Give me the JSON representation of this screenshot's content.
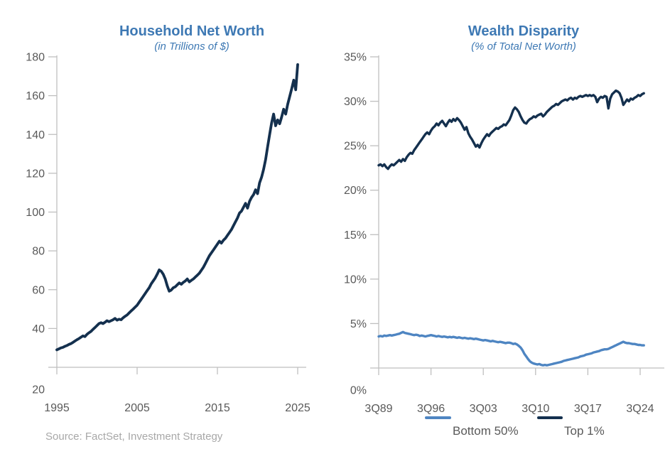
{
  "source_note": "Source: FactSet, Investment Strategy",
  "colors": {
    "title_blue": "#3E79B4",
    "navy": "#14304E",
    "light_blue": "#4E85C2",
    "axis_gray": "#BFBFBF",
    "tick_label_gray": "#595959",
    "source_gray": "#A8A8A8"
  },
  "chart_data": [
    {
      "id": "household-net-worth",
      "type": "line",
      "title": "Household Net Worth",
      "subtitle": "(in Trillions of $)",
      "xlabel": "",
      "ylabel": "",
      "grid": false,
      "legend_position": "none",
      "ylim": [
        20,
        180
      ],
      "y_ticks": [
        {
          "value": 180,
          "label": "180"
        },
        {
          "value": 160,
          "label": "160"
        },
        {
          "value": 140,
          "label": "140"
        },
        {
          "value": 120,
          "label": "120"
        },
        {
          "value": 100,
          "label": "100"
        },
        {
          "value": 80,
          "label": "80"
        },
        {
          "value": 60,
          "label": "60"
        },
        {
          "value": 40,
          "label": "40"
        },
        {
          "value": 20,
          "label": "20"
        }
      ],
      "x_ticks": [
        {
          "value": 1995,
          "label": "1995"
        },
        {
          "value": 2005,
          "label": "2005"
        },
        {
          "value": 2015,
          "label": "2015"
        },
        {
          "value": 2025,
          "label": "2025"
        }
      ],
      "series": [
        {
          "name": "Household Net Worth",
          "color_key": "navy",
          "stroke_width": 3.8,
          "x_start": 1995.0,
          "x_step": 0.25,
          "values": [
            29.0,
            29.5,
            30.0,
            30.3,
            30.8,
            31.2,
            31.8,
            32.2,
            32.8,
            33.5,
            34.2,
            34.8,
            35.5,
            36.2,
            35.8,
            37.0,
            37.8,
            38.5,
            39.5,
            40.5,
            41.5,
            42.5,
            43.0,
            42.5,
            43.2,
            44.0,
            43.5,
            44.0,
            44.5,
            45.2,
            44.3,
            44.8,
            44.5,
            45.5,
            46.3,
            47.0,
            48.0,
            49.0,
            50.0,
            51.0,
            52.0,
            53.5,
            55.0,
            56.5,
            58.0,
            59.5,
            61.0,
            63.0,
            64.5,
            66.0,
            68.0,
            70.2,
            69.5,
            68.0,
            65.5,
            62.0,
            59.2,
            59.8,
            61.0,
            61.5,
            62.5,
            63.5,
            62.8,
            63.8,
            64.5,
            65.5,
            64.0,
            64.8,
            65.5,
            66.5,
            67.5,
            68.5,
            70.0,
            71.5,
            73.5,
            75.5,
            77.5,
            79.0,
            80.5,
            82.0,
            83.5,
            85.0,
            84.0,
            85.5,
            86.5,
            88.0,
            89.5,
            91.0,
            93.0,
            95.0,
            97.0,
            99.5,
            100.5,
            102.5,
            104.5,
            102.0,
            105.5,
            107.5,
            109.0,
            111.5,
            109.5,
            115.0,
            118.0,
            122.0,
            127.0,
            133.5,
            140.0,
            146.0,
            150.5,
            144.5,
            147.5,
            145.5,
            149.0,
            153.0,
            150.5,
            155.5,
            159.5,
            163.5,
            168.0,
            163.0,
            176.0
          ]
        }
      ]
    },
    {
      "id": "wealth-disparity",
      "type": "line",
      "title": "Wealth Disparity",
      "subtitle": "(% of Total Net Worth)",
      "xlabel": "",
      "ylabel": "",
      "grid": false,
      "legend_position": "bottom",
      "ylim": [
        0,
        35
      ],
      "y_ticks": [
        {
          "value": 35,
          "label": "35%"
        },
        {
          "value": 30,
          "label": "30%"
        },
        {
          "value": 25,
          "label": "25%"
        },
        {
          "value": 20,
          "label": "20%"
        },
        {
          "value": 15,
          "label": "15%"
        },
        {
          "value": 10,
          "label": "10%"
        },
        {
          "value": 5,
          "label": "5%"
        },
        {
          "value": 0,
          "label": "0%"
        }
      ],
      "x_ticks": [
        {
          "value": 1989.5,
          "label": "3Q89"
        },
        {
          "value": 1996.5,
          "label": "3Q96"
        },
        {
          "value": 2003.5,
          "label": "3Q03"
        },
        {
          "value": 2010.5,
          "label": "3Q10"
        },
        {
          "value": 2017.5,
          "label": "3Q17"
        },
        {
          "value": 2024.5,
          "label": "3Q24"
        }
      ],
      "legend": [
        {
          "label": "Bottom 50%",
          "color_key": "light_blue"
        },
        {
          "label": "Top 1%",
          "color_key": "navy"
        }
      ],
      "series": [
        {
          "name": "Bottom 50%",
          "color_key": "light_blue",
          "stroke_width": 3.4,
          "x_start": 1989.5,
          "x_step": 0.25,
          "values": [
            3.55,
            3.6,
            3.55,
            3.65,
            3.6,
            3.65,
            3.7,
            3.65,
            3.7,
            3.75,
            3.8,
            3.85,
            3.95,
            4.05,
            3.95,
            3.9,
            3.85,
            3.8,
            3.75,
            3.7,
            3.75,
            3.7,
            3.6,
            3.65,
            3.6,
            3.55,
            3.6,
            3.65,
            3.7,
            3.65,
            3.6,
            3.55,
            3.6,
            3.55,
            3.5,
            3.55,
            3.5,
            3.45,
            3.5,
            3.45,
            3.5,
            3.45,
            3.4,
            3.45,
            3.4,
            3.35,
            3.4,
            3.35,
            3.3,
            3.35,
            3.3,
            3.25,
            3.3,
            3.25,
            3.2,
            3.15,
            3.1,
            3.15,
            3.1,
            3.05,
            3.0,
            3.05,
            3.0,
            2.95,
            2.9,
            2.95,
            2.9,
            2.85,
            2.8,
            2.85,
            2.85,
            2.8,
            2.7,
            2.75,
            2.65,
            2.5,
            2.3,
            2.0,
            1.6,
            1.3,
            1.0,
            0.75,
            0.6,
            0.5,
            0.45,
            0.4,
            0.45,
            0.35,
            0.3,
            0.35,
            0.3,
            0.35,
            0.4,
            0.45,
            0.5,
            0.55,
            0.6,
            0.65,
            0.7,
            0.8,
            0.85,
            0.9,
            0.95,
            1.0,
            1.05,
            1.1,
            1.15,
            1.2,
            1.3,
            1.35,
            1.4,
            1.5,
            1.55,
            1.6,
            1.65,
            1.75,
            1.8,
            1.85,
            1.9,
            2.0,
            2.05,
            2.1,
            2.1,
            2.15,
            2.25,
            2.35,
            2.45,
            2.55,
            2.65,
            2.75,
            2.85,
            2.95,
            2.85,
            2.8,
            2.8,
            2.75,
            2.7,
            2.7,
            2.65,
            2.6,
            2.6,
            2.55,
            2.55
          ]
        },
        {
          "name": "Top 1%",
          "color_key": "navy",
          "stroke_width": 3.4,
          "x_start": 1989.5,
          "x_step": 0.25,
          "values": [
            22.8,
            22.9,
            22.7,
            22.9,
            22.6,
            22.4,
            22.7,
            22.9,
            22.8,
            23.0,
            23.2,
            23.4,
            23.2,
            23.5,
            23.3,
            23.7,
            24.0,
            24.2,
            24.1,
            24.5,
            24.8,
            25.1,
            25.4,
            25.7,
            26.0,
            26.3,
            26.5,
            26.3,
            26.7,
            27.0,
            27.2,
            27.5,
            27.3,
            27.6,
            27.8,
            27.5,
            27.2,
            27.6,
            27.9,
            27.7,
            28.0,
            27.8,
            28.1,
            27.9,
            27.6,
            27.2,
            26.8,
            27.1,
            26.4,
            26.0,
            25.7,
            25.3,
            24.9,
            25.1,
            24.8,
            25.3,
            25.7,
            26.0,
            26.3,
            26.1,
            26.4,
            26.6,
            26.8,
            27.0,
            26.9,
            27.1,
            27.2,
            27.4,
            27.3,
            27.6,
            27.9,
            28.4,
            29.0,
            29.3,
            29.1,
            28.8,
            28.3,
            27.9,
            27.6,
            27.5,
            27.8,
            28.0,
            28.1,
            28.3,
            28.2,
            28.4,
            28.5,
            28.6,
            28.3,
            28.5,
            28.8,
            29.0,
            29.2,
            29.4,
            29.5,
            29.7,
            29.6,
            29.8,
            30.0,
            30.1,
            30.2,
            30.1,
            30.3,
            30.4,
            30.2,
            30.4,
            30.3,
            30.5,
            30.6,
            30.5,
            30.6,
            30.7,
            30.6,
            30.7,
            30.6,
            30.7,
            30.5,
            29.9,
            30.3,
            30.5,
            30.4,
            30.6,
            30.5,
            29.2,
            30.3,
            30.8,
            31.0,
            31.2,
            31.1,
            30.9,
            30.4,
            29.6,
            29.9,
            30.2,
            30.0,
            30.3,
            30.2,
            30.4,
            30.5,
            30.7,
            30.6,
            30.8,
            30.9
          ]
        }
      ]
    }
  ]
}
